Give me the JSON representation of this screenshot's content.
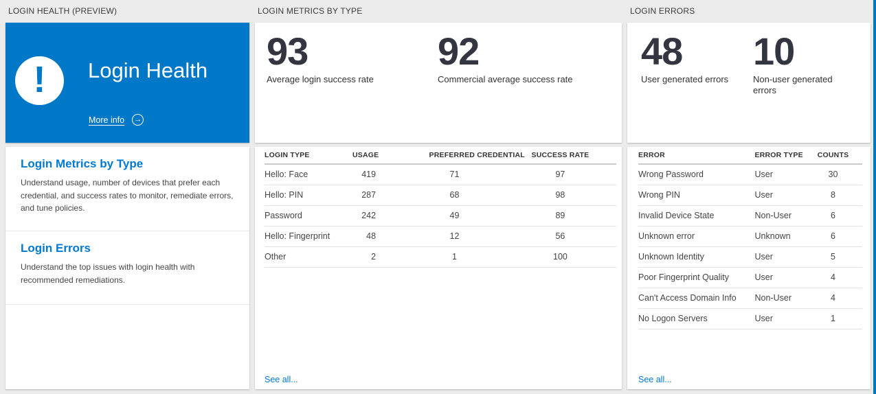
{
  "colors": {
    "tile_blue": "#0078c8",
    "heading_blue": "#0079d1",
    "link_blue": "#0078d4",
    "page_background": "#ebebeb"
  },
  "icons": {
    "tile_glyph": "!",
    "more_info_arrow_glyph": "→"
  },
  "health": {
    "title": "LOGIN HEALTH (PREVIEW)",
    "tile": {
      "heading": "Login Health",
      "more_info_label": "More info"
    },
    "sections": [
      {
        "heading": "Login Metrics by Type",
        "description": "Understand usage, number of devices that prefer each credential, and success rates to monitor, remediate errors, and tune policies."
      },
      {
        "heading": "Login Errors",
        "description": "Understand the top issues with login health with recommended remediations."
      }
    ]
  },
  "metrics": {
    "title": "LOGIN METRICS BY TYPE",
    "stats": [
      {
        "value": "93",
        "label": "Average login success rate"
      },
      {
        "value": "92",
        "label": "Commercial average success rate"
      }
    ],
    "table": {
      "columns": [
        "LOGIN TYPE",
        "USAGE",
        "PREFERRED CREDENTIAL",
        "SUCCESS RATE"
      ],
      "rows": [
        [
          "Hello: Face",
          "419",
          "71",
          "97"
        ],
        [
          "Hello: PIN",
          "287",
          "68",
          "98"
        ],
        [
          "Password",
          "242",
          "49",
          "89"
        ],
        [
          "Hello: Fingerprint",
          "48",
          "12",
          "56"
        ],
        [
          "Other",
          "2",
          "1",
          "100"
        ]
      ]
    },
    "see_all_label": "See all..."
  },
  "errors": {
    "title": "LOGIN ERRORS",
    "stats": [
      {
        "value": "48",
        "label": "User generated errors"
      },
      {
        "value": "10",
        "label": "Non-user generated errors"
      }
    ],
    "table": {
      "columns": [
        "ERROR",
        "ERROR TYPE",
        "COUNTS"
      ],
      "rows": [
        [
          "Wrong Password",
          "User",
          "30"
        ],
        [
          "Wrong PIN",
          "User",
          "8"
        ],
        [
          "Invalid Device State",
          "Non-User",
          "6"
        ],
        [
          "Unknown error",
          "Unknown",
          "6"
        ],
        [
          "Unknown Identity",
          "User",
          "5"
        ],
        [
          "Poor Fingerprint Quality",
          "User",
          "4"
        ],
        [
          "Can't Access Domain Info",
          "Non-User",
          "4"
        ],
        [
          "No Logon Servers",
          "User",
          "1"
        ]
      ]
    },
    "see_all_label": "See all..."
  }
}
